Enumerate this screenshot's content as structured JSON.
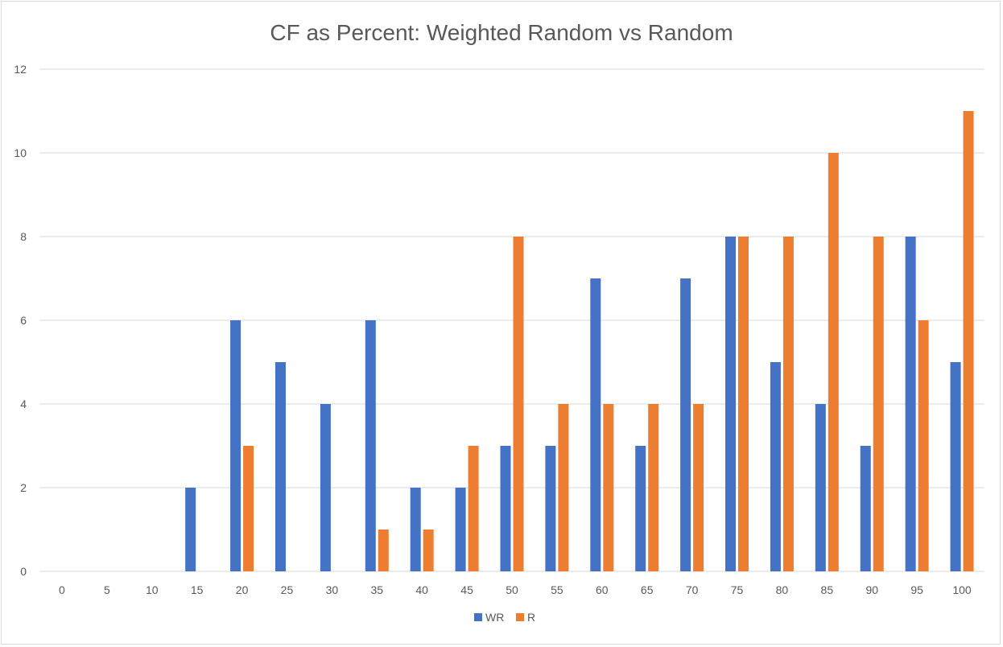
{
  "chart_data": {
    "type": "bar",
    "title": "CF as Percent: Weighted Random vs Random",
    "xlabel": "",
    "ylabel": "",
    "categories": [
      "0",
      "5",
      "10",
      "15",
      "20",
      "25",
      "30",
      "35",
      "40",
      "45",
      "50",
      "55",
      "60",
      "65",
      "70",
      "75",
      "80",
      "85",
      "90",
      "95",
      "100"
    ],
    "series": [
      {
        "name": "WR",
        "color": "#4472c4",
        "values": [
          0,
          0,
          0,
          2,
          6,
          5,
          4,
          6,
          2,
          2,
          3,
          3,
          7,
          3,
          7,
          8,
          5,
          4,
          3,
          8,
          5
        ]
      },
      {
        "name": "R",
        "color": "#ed7d31",
        "values": [
          0,
          0,
          0,
          0,
          3,
          0,
          0,
          1,
          1,
          3,
          8,
          4,
          4,
          4,
          4,
          8,
          8,
          10,
          8,
          6,
          11
        ]
      }
    ],
    "ylim": [
      0,
      12
    ],
    "yticks": [
      "0",
      "2",
      "4",
      "6",
      "8",
      "10",
      "12"
    ],
    "grid": true,
    "legend": "bottom"
  }
}
